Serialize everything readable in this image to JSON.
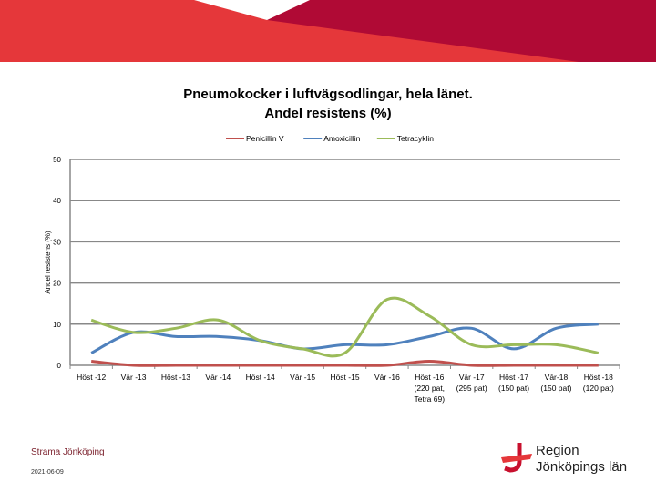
{
  "title_line1": "Pneumokocker i luftvägsodlingar, hela länet.",
  "title_line2": "Andel resistens (%)",
  "footer": {
    "org": "Strama Jönköping",
    "date": "2021-06-09",
    "logo_line1": "Region",
    "logo_line2": "Jönköpings län"
  },
  "colors": {
    "banner_red": "#e5373a",
    "banner_dark": "#b00a35"
  },
  "chart_data": {
    "type": "line",
    "title": "Pneumokocker i luftvägsodlingar, hela länet. Andel resistens (%)",
    "ylabel": "Andel resistens (%)",
    "xlabel": "",
    "ylim": [
      0,
      50
    ],
    "yticks": [
      0,
      10,
      20,
      30,
      40,
      50
    ],
    "grid": "horizontal",
    "legend": "top",
    "categories": [
      [
        "Höst -12"
      ],
      [
        "Vår -13"
      ],
      [
        "Höst -13"
      ],
      [
        "Vår -14"
      ],
      [
        "Höst -14"
      ],
      [
        "Vår -15"
      ],
      [
        "Höst -15"
      ],
      [
        "Vår -16"
      ],
      [
        "Höst -16",
        "(220 pat,",
        "Tetra 69)"
      ],
      [
        "Vår -17",
        "(295 pat)"
      ],
      [
        "Höst -17",
        "(150 pat)"
      ],
      [
        "Vår-18",
        "(150 pat)"
      ],
      [
        "Höst -18",
        "(120 pat)"
      ]
    ],
    "series": [
      {
        "name": "Penicillin V",
        "color": "#c0504d",
        "values": [
          1,
          0,
          0,
          0,
          0,
          0,
          0,
          0,
          1,
          0,
          0,
          0,
          0
        ]
      },
      {
        "name": "Amoxicillin",
        "color": "#4f81bd",
        "values": [
          3,
          8,
          7,
          7,
          6,
          4,
          5,
          5,
          7,
          9,
          4,
          9,
          10
        ]
      },
      {
        "name": "Tetracyklin",
        "color": "#9bbb59",
        "values": [
          11,
          8,
          9,
          11,
          6,
          4,
          3,
          16,
          12,
          5,
          5,
          5,
          3
        ]
      }
    ]
  }
}
